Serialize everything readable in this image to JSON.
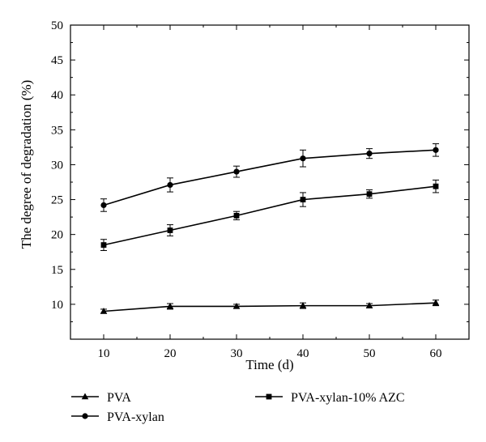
{
  "chart_data": {
    "type": "line",
    "xlabel": "Time (d)",
    "ylabel": "The degree of degradation (%)",
    "xlim": [
      5,
      65
    ],
    "ylim": [
      5,
      50
    ],
    "xticks": [
      10,
      20,
      30,
      40,
      50,
      60
    ],
    "yticks": [
      10,
      15,
      20,
      25,
      30,
      35,
      40,
      45,
      50
    ],
    "grid": false,
    "legend_position": "bottom",
    "x": [
      10,
      20,
      30,
      40,
      50,
      60
    ],
    "series": [
      {
        "name": "PVA",
        "marker": "triangle",
        "values": [
          9.0,
          9.7,
          9.7,
          9.8,
          9.8,
          10.2
        ],
        "error": [
          0.3,
          0.4,
          0.3,
          0.4,
          0.3,
          0.4
        ]
      },
      {
        "name": "PVA-xylan",
        "marker": "circle",
        "values": [
          24.2,
          27.1,
          29.0,
          30.9,
          31.6,
          32.1
        ],
        "error": [
          0.9,
          1.0,
          0.8,
          1.2,
          0.7,
          0.9
        ]
      },
      {
        "name": "PVA-xylan-10% AZC",
        "marker": "square",
        "values": [
          18.5,
          20.6,
          22.7,
          25.0,
          25.8,
          26.9
        ],
        "error": [
          0.8,
          0.8,
          0.6,
          1.0,
          0.6,
          0.9
        ]
      }
    ]
  }
}
